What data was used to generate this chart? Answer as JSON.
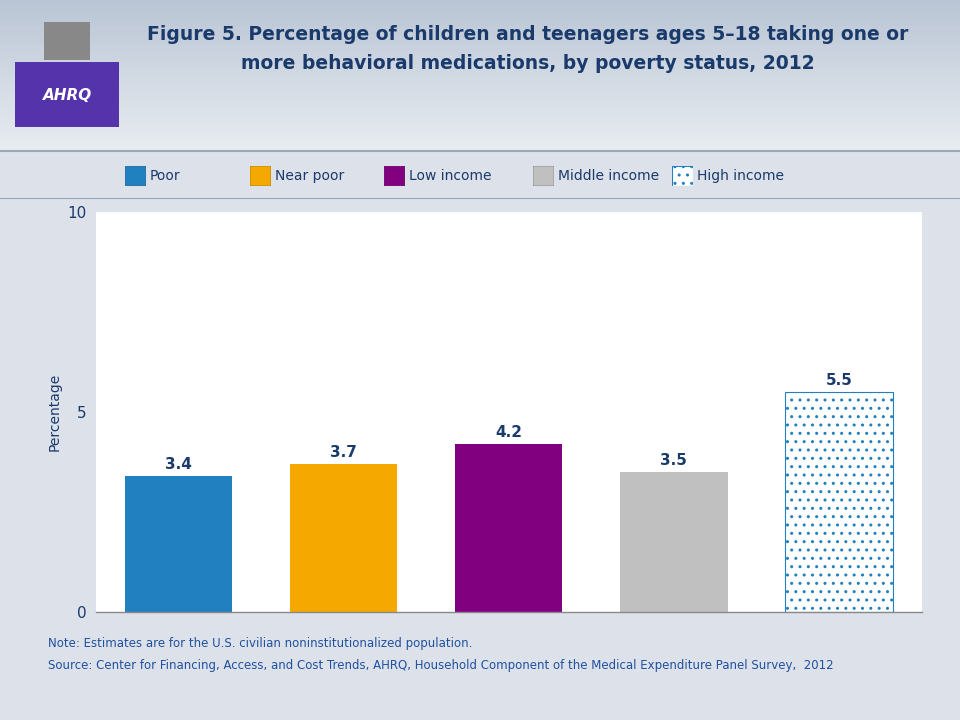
{
  "title_line1": "Figure 5. Percentage of children and teenagers ages 5–18 taking one or",
  "title_line2": "more behavioral medications, by poverty status, 2012",
  "title_color": "#1a3a6b",
  "categories": [
    "Poor",
    "Near poor",
    "Low income",
    "Middle income",
    "High income"
  ],
  "values": [
    3.4,
    3.7,
    4.2,
    3.5,
    5.5
  ],
  "bar_colors": [
    "#2080c0",
    "#f5a800",
    "#800080",
    "#c0c0c0",
    "#ffffff"
  ],
  "hatch_color": "#2080c0",
  "hatch_pattern": "..",
  "value_labels": [
    "3.4",
    "3.7",
    "4.2",
    "3.5",
    "5.5"
  ],
  "value_label_color": "#1a3a6b",
  "ylabel": "Percentage",
  "ylabel_color": "#1a3a6b",
  "ylim": [
    0,
    10
  ],
  "yticks": [
    0,
    5,
    10
  ],
  "header_bg_top": "#c8d0dc",
  "header_bg_bottom": "#e8ecf0",
  "plot_bg_color": "#ffffff",
  "outer_bg_color": "#dde2ea",
  "note_line1": "Note: Estimates are for the U.S. civilian noninstitutionalized population.",
  "note_line2": "Source: Center for Financing, Access, and Cost Trends, AHRQ, Household Component of the Medical Expenditure Panel Survey,  2012",
  "note_color": "#2050a0",
  "legend_items": [
    {
      "label": "Poor",
      "color": "#2080c0",
      "hatch": null
    },
    {
      "label": "Near poor",
      "color": "#f5a800",
      "hatch": null
    },
    {
      "label": "Low income",
      "color": "#800080",
      "hatch": null
    },
    {
      "label": "Middle income",
      "color": "#c0c0c0",
      "hatch": null
    },
    {
      "label": "High income",
      "color": "#ffffff",
      "hatch": ".."
    }
  ],
  "title_fontsize": 13.5,
  "label_fontsize": 10,
  "tick_fontsize": 11,
  "value_fontsize": 11,
  "note_fontsize": 8.5,
  "legend_fontsize": 10,
  "separator_color": "#9aa8b8",
  "spine_color": "#888888"
}
